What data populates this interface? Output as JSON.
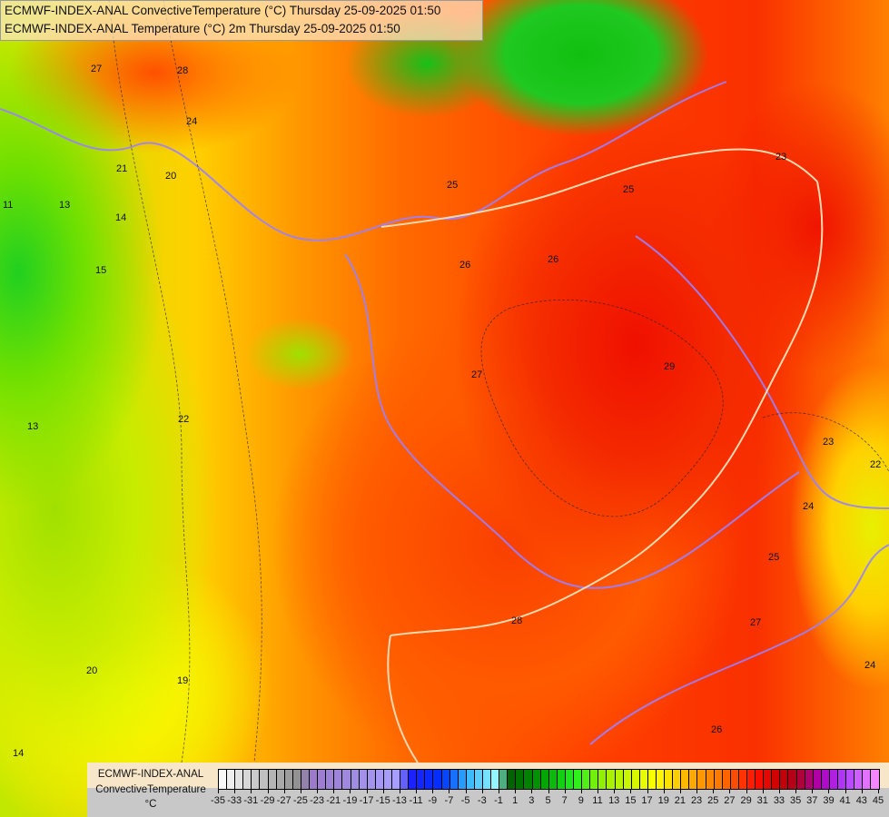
{
  "header": {
    "line1": "ECMWF-INDEX-ANAL ConvectiveTemperature (°C) Thursday 25-09-2025 01:50",
    "line2": "ECMWF-INDEX-ANAL Temperature (°C) 2m Thursday 25-09-2025 01:50"
  },
  "map": {
    "contour_labels": [
      {
        "t": "27"
      },
      {
        "t": "28"
      },
      {
        "t": "24"
      },
      {
        "t": "21"
      },
      {
        "t": "20"
      },
      {
        "t": "14"
      },
      {
        "t": "13"
      },
      {
        "t": "15"
      },
      {
        "t": "25"
      },
      {
        "t": "26"
      },
      {
        "t": "26"
      },
      {
        "t": "27"
      },
      {
        "t": "29"
      },
      {
        "t": "28"
      },
      {
        "t": "25"
      },
      {
        "t": "23"
      },
      {
        "t": "23"
      },
      {
        "t": "24"
      },
      {
        "t": "25"
      },
      {
        "t": "27"
      },
      {
        "t": "26"
      },
      {
        "t": "20"
      },
      {
        "t": "19"
      },
      {
        "t": "14"
      },
      {
        "t": "13"
      },
      {
        "t": "11"
      },
      {
        "t": "22"
      },
      {
        "t": "24"
      },
      {
        "t": "22"
      }
    ],
    "border_color": "#9a80ff",
    "country_border_color": "#ffd8b0"
  },
  "legend": {
    "source": "ECMWF-INDEX-ANAL",
    "parameter": "ConvectiveTemperature",
    "unit": "°C",
    "min": -35,
    "max": 45,
    "step": 1,
    "tick_labels": [
      "-35",
      "-33",
      "-31",
      "-29",
      "-27",
      "-25",
      "-23",
      "-21",
      "-19",
      "-17",
      "-15",
      "-13",
      "-11",
      "-9",
      "-7",
      "-5",
      "-3",
      "-1",
      "1",
      "3",
      "5",
      "7",
      "9",
      "11",
      "13",
      "15",
      "17",
      "19",
      "21",
      "23",
      "25",
      "27",
      "29",
      "31",
      "33",
      "35",
      "37",
      "39",
      "41",
      "43",
      "45"
    ],
    "color_stops": [
      [
        -35,
        "#ffffff"
      ],
      [
        -25,
        "#8c8c8c"
      ],
      [
        -24,
        "#9a78c8"
      ],
      [
        -13,
        "#a8a0ff"
      ],
      [
        -12,
        "#2020ff"
      ],
      [
        -8,
        "#0030ff"
      ],
      [
        -5,
        "#30b0ff"
      ],
      [
        -1,
        "#a0ffff"
      ],
      [
        0,
        "#005a00"
      ],
      [
        4,
        "#009a00"
      ],
      [
        8,
        "#20f020"
      ],
      [
        12,
        "#a0f000"
      ],
      [
        18,
        "#ffff00"
      ],
      [
        22,
        "#ffb000"
      ],
      [
        26,
        "#ff7000"
      ],
      [
        30,
        "#ff1000"
      ],
      [
        33,
        "#c80000"
      ],
      [
        35,
        "#b00020"
      ],
      [
        38,
        "#b000c0"
      ],
      [
        41,
        "#b040ff"
      ],
      [
        45,
        "#ff90ff"
      ]
    ]
  }
}
